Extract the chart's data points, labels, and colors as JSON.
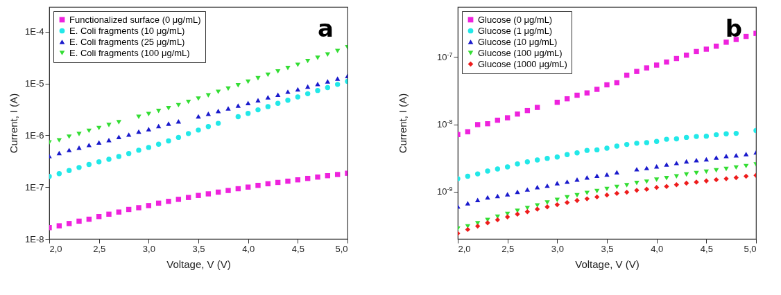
{
  "chart_data": [
    {
      "type": "scatter",
      "xlabel": "Voltage, V (V)",
      "ylabel": "Current, I (A)",
      "annotations": [
        "a"
      ],
      "log": "y",
      "legend": "top left",
      "grid": false,
      "x": [
        2.0,
        2.1,
        2.2,
        2.3,
        2.4,
        2.5,
        2.6,
        2.7,
        2.8,
        2.9,
        3.0,
        3.1,
        3.2,
        3.3,
        3.4,
        3.5,
        3.6,
        3.7,
        3.8,
        3.9,
        4.0,
        4.1,
        4.2,
        4.3,
        4.4,
        4.5,
        4.6,
        4.7,
        4.8,
        4.9,
        5.0
      ],
      "xlim": [
        2,
        5
      ],
      "xticks": [
        {
          "value": 2,
          "label": "2,0"
        },
        {
          "value": 2.5,
          "label": "2,5"
        },
        {
          "value": 3,
          "label": "3,0"
        },
        {
          "value": 3.5,
          "label": "3,5"
        },
        {
          "value": 4,
          "label": "4,0"
        },
        {
          "value": 4.5,
          "label": "4,5"
        },
        {
          "value": 5,
          "label": "5,0"
        }
      ],
      "ylim": [
        1e-08,
        0.0003
      ],
      "yticks": [
        {
          "value": 1e-08,
          "label": "1E-8"
        },
        {
          "value": 1e-07,
          "label": "1E-7"
        },
        {
          "value": 1e-06,
          "label": "1E-6"
        },
        {
          "value": 1e-05,
          "label": "1E-5"
        },
        {
          "value": 0.0001,
          "label": "1E-4"
        }
      ],
      "series": [
        {
          "name": "Functionalized surface (0 μg/mL)",
          "color": "#ee22dd",
          "marker": "square",
          "values": [
            1.65e-08,
            1.79e-08,
            1.98e-08,
            2.2e-08,
            2.4e-08,
            2.7e-08,
            3e-08,
            3.3e-08,
            3.7e-08,
            4e-08,
            4.4e-08,
            4.9e-08,
            5.3e-08,
            5.8e-08,
            6.3e-08,
            6.9e-08,
            7.4e-08,
            8e-08,
            8.6e-08,
            9.3e-08,
            1e-07,
            1.08e-07,
            1.16e-07,
            1.23e-07,
            1.3e-07,
            1.38e-07,
            1.47e-07,
            1.56e-07,
            1.66e-07,
            1.75e-07,
            1.85e-07
          ]
        },
        {
          "name": "E. Coli fragments (10 μg/mL)",
          "color": "#22e8e8",
          "marker": "circle",
          "values": [
            1.61e-07,
            1.82e-07,
            2.09e-07,
            2.39e-07,
            2.73e-07,
            3.06e-07,
            3.44e-07,
            3.89e-07,
            4.45e-07,
            5.15e-07,
            5.83e-07,
            6.74e-07,
            7.8e-07,
            9.1e-07,
            1.08e-06,
            1.26e-06,
            1.47e-06,
            1.7e-06,
            null,
            2.29e-06,
            2.65e-06,
            3.1e-06,
            3.58e-06,
            4.14e-06,
            4.74e-06,
            5.48e-06,
            6.34e-06,
            7.32e-06,
            8.3e-06,
            9.6e-06,
            1.1e-05
          ]
        },
        {
          "name": "E. Coli fragments (25 μg/mL)",
          "color": "#1a1acc",
          "marker": "triangle",
          "values": [
            3.97e-07,
            4.55e-07,
            5.2e-07,
            5.77e-07,
            6.5e-07,
            7.25e-07,
            8.1e-07,
            9.3e-07,
            1.03e-06,
            1.18e-06,
            1.31e-06,
            1.51e-06,
            1.68e-06,
            1.86e-06,
            null,
            2.32e-06,
            2.6e-06,
            2.94e-06,
            3.3e-06,
            3.73e-06,
            4.19e-06,
            4.74e-06,
            5.42e-06,
            6.08e-06,
            6.95e-06,
            7.71e-06,
            8.73e-06,
            9.8e-06,
            1.1e-05,
            1.24e-05,
            1.39e-05
          ]
        },
        {
          "name": "E. Coli fragments (100 μg/mL)",
          "color": "#33dd33",
          "marker": "triangle-down",
          "values": [
            7.25e-07,
            8e-07,
            9.4e-07,
            1.06e-06,
            1.22e-06,
            1.38e-06,
            1.58e-06,
            1.79e-06,
            null,
            2.27e-06,
            2.57e-06,
            2.94e-06,
            3.33e-06,
            3.81e-06,
            4.41e-06,
            5.1e-06,
            5.89e-06,
            6.89e-06,
            7.96e-06,
            9.2e-06,
            1.08e-05,
            1.26e-05,
            1.47e-05,
            1.71e-05,
            1.98e-05,
            2.29e-05,
            2.71e-05,
            3.13e-05,
            3.62e-05,
            4.23e-05,
            4.99e-05
          ]
        }
      ]
    },
    {
      "type": "scatter",
      "xlabel": "Voltage, V (V)",
      "ylabel": "Current, I (A)",
      "annotations": [
        "b"
      ],
      "log": "y",
      "legend": "top left",
      "grid": false,
      "x": [
        2.0,
        2.1,
        2.2,
        2.3,
        2.4,
        2.5,
        2.6,
        2.7,
        2.8,
        2.9,
        3.0,
        3.1,
        3.2,
        3.3,
        3.4,
        3.5,
        3.6,
        3.7,
        3.8,
        3.9,
        4.0,
        4.1,
        4.2,
        4.3,
        4.4,
        4.5,
        4.6,
        4.7,
        4.8,
        4.9,
        5.0
      ],
      "xlim": [
        2,
        5
      ],
      "xticks": [
        {
          "value": 2,
          "label": "2,0"
        },
        {
          "value": 2.5,
          "label": "2,5"
        },
        {
          "value": 3,
          "label": "3,0"
        },
        {
          "value": 3.5,
          "label": "3,5"
        },
        {
          "value": 4,
          "label": "4,0"
        },
        {
          "value": 4.5,
          "label": "4,5"
        },
        {
          "value": 5,
          "label": "5,0"
        }
      ],
      "ylim": [
        2e-10,
        5.5e-07
      ],
      "yticks": [
        {
          "value": 1e-09,
          "label": "10$^{-9}$"
        },
        {
          "value": 1e-08,
          "label": "10$^{-8}$"
        },
        {
          "value": 1e-07,
          "label": "10$^{-7}$"
        }
      ],
      "series": [
        {
          "name": "Glucose (0 μg/mL)",
          "color": "#ee22dd",
          "marker": "square",
          "values": [
            7.05e-09,
            7.76e-09,
            9.9e-09,
            1.02e-08,
            1.15e-08,
            1.25e-08,
            1.42e-08,
            1.6e-08,
            1.78e-08,
            null,
            2.12e-08,
            2.39e-08,
            2.7e-08,
            2.92e-08,
            3.3e-08,
            3.85e-08,
            4.13e-08,
            5.35e-08,
            6.08e-08,
            6.86e-08,
            7.55e-08,
            8.38e-08,
            9.45e-08,
            1.06e-07,
            1.2e-07,
            1.3e-07,
            1.44e-07,
            1.65e-07,
            1.81e-07,
            2.01e-07,
            2.23e-07
          ]
        },
        {
          "name": "Glucose (1 μg/mL)",
          "color": "#22e8e8",
          "marker": "circle",
          "values": [
            1.56e-09,
            1.7e-09,
            1.84e-09,
            2.03e-09,
            2.18e-09,
            2.34e-09,
            2.58e-09,
            2.77e-09,
            2.96e-09,
            3.13e-09,
            3.28e-09,
            3.56e-09,
            3.77e-09,
            4.11e-09,
            4.18e-09,
            4.42e-09,
            4.75e-09,
            5.03e-09,
            5.24e-09,
            5.36e-09,
            5.58e-09,
            6e-09,
            6.1e-09,
            6.4e-09,
            6.6e-09,
            6.67e-09,
            7e-09,
            7.22e-09,
            7.34e-09,
            null,
            8.08e-09
          ]
        },
        {
          "name": "Glucose (10 μg/mL)",
          "color": "#1a1acc",
          "marker": "triangle",
          "values": [
            6.08e-10,
            6.75e-10,
            7.55e-10,
            8.25e-10,
            8.65e-10,
            9.2e-10,
            1e-09,
            1.08e-09,
            1.17e-09,
            1.23e-09,
            1.34e-09,
            1.41e-09,
            1.52e-09,
            1.63e-09,
            1.73e-09,
            1.8e-09,
            1.95e-09,
            null,
            2.16e-09,
            2.25e-09,
            2.38e-09,
            2.54e-09,
            2.67e-09,
            2.82e-09,
            2.94e-09,
            3.03e-09,
            3.21e-09,
            3.39e-09,
            3.48e-09,
            3.62e-09,
            3.83e-09
          ]
        },
        {
          "name": "Glucose (100 μg/mL)",
          "color": "#33dd33",
          "marker": "triangle-down",
          "values": [
            2.83e-10,
            3.07e-10,
            3.4e-10,
            3.81e-10,
            4.27e-10,
            4.7e-10,
            5.21e-10,
            5.74e-10,
            6.28e-10,
            6.91e-10,
            7.55e-10,
            8.25e-10,
            8.87e-10,
            9.6e-10,
            1.02e-09,
            1.1e-09,
            1.18e-09,
            1.25e-09,
            1.35e-09,
            1.41e-09,
            1.51e-09,
            1.59e-09,
            1.69e-09,
            1.8e-09,
            1.89e-09,
            1.98e-09,
            2.08e-09,
            2.18e-09,
            2.29e-09,
            2.4e-09,
            2.54e-09
          ]
        },
        {
          "name": "Glucose (1000 μg/mL)",
          "color": "#ee1c1c",
          "marker": "diamond",
          "values": [
            2.41e-10,
            2.76e-10,
            3.09e-10,
            3.46e-10,
            3.84e-10,
            4.23e-10,
            4.66e-10,
            5.05e-10,
            5.52e-10,
            5.98e-10,
            6.43e-10,
            6.91e-10,
            7.43e-10,
            7.86e-10,
            8.38e-10,
            8.94e-10,
            9.46e-10,
            9.84e-10,
            1.05e-09,
            1.09e-09,
            1.16e-09,
            1.2e-09,
            1.27e-09,
            1.34e-09,
            1.39e-09,
            1.45e-09,
            1.51e-09,
            1.56e-09,
            1.62e-09,
            1.7e-09,
            1.75e-09
          ]
        }
      ]
    }
  ]
}
